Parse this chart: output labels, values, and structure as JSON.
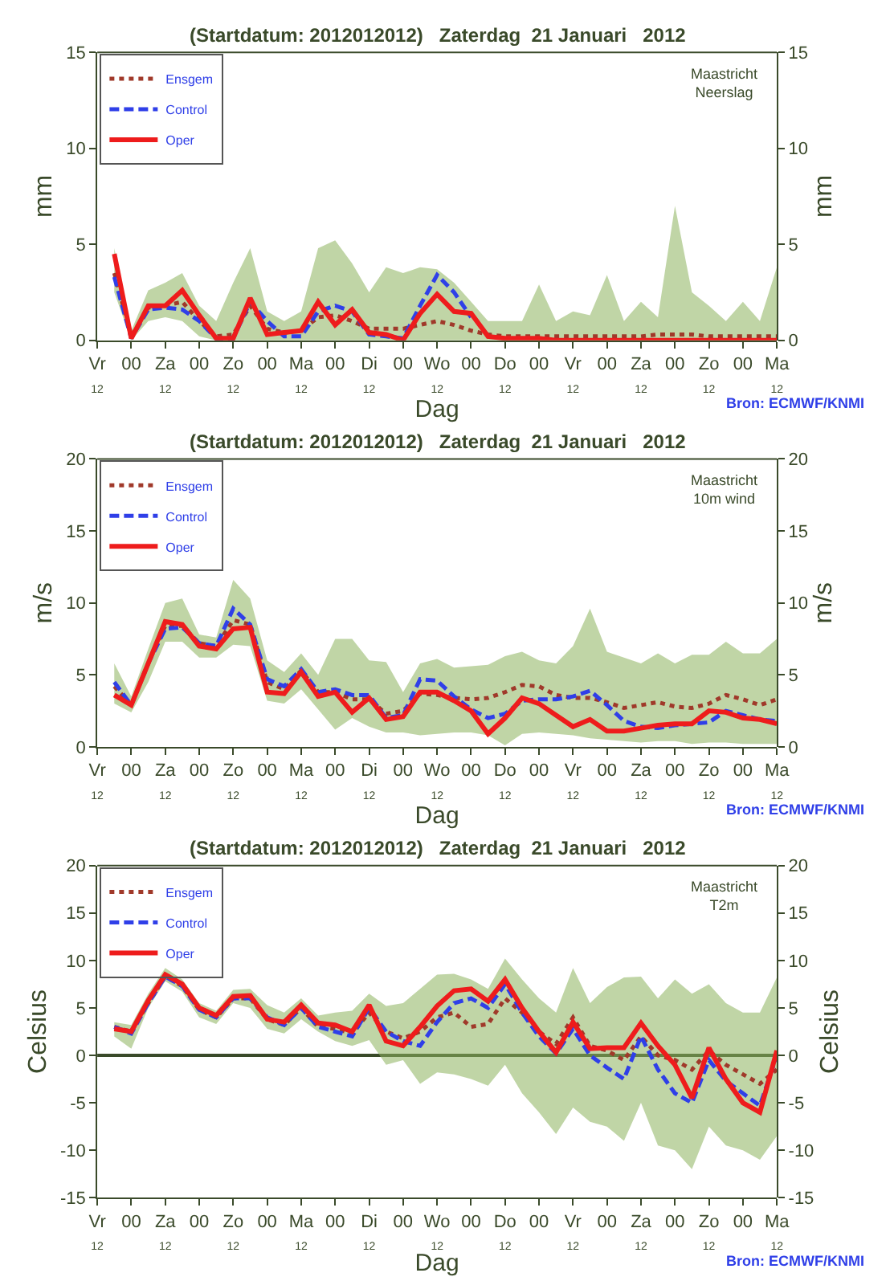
{
  "chart_data": [
    {
      "type": "line",
      "title": "(Startdatum: 2012012012)   Zaterdag  21 Januari   2012",
      "xlabel": "Dag",
      "ylabel": "mm",
      "y2label": "mm",
      "annotations": [
        "Maastricht\nNeerslag",
        "Bron: ECMWF/KNMI"
      ],
      "categories": [
        "Vr\n12",
        null,
        "00",
        null,
        "Za\n12",
        null,
        "00",
        null,
        "Zo\n12",
        null,
        "00",
        null,
        "Ma\n12",
        null,
        "00",
        null,
        "Di\n12",
        null,
        "00",
        null,
        "Wo\n12",
        null,
        "00",
        null,
        "Do\n12",
        null,
        "00",
        null,
        "Vr\n12",
        null,
        "00",
        null,
        "Za\n12",
        null,
        "00",
        null,
        "Zo\n12",
        null,
        "00",
        null,
        "Ma\n12"
      ],
      "ylim": [
        0,
        15
      ],
      "yticks": [
        0,
        5,
        10,
        15
      ],
      "y2lim": [
        0,
        15
      ],
      "y2ticks": [
        0,
        5,
        10,
        15
      ],
      "grid": false,
      "legend": "top left",
      "marker": "none",
      "series": [
        {
          "name": "Ensgem",
          "color": "#a0392a",
          "line_style": "dotted",
          "values": [
            null,
            3.5,
            0.2,
            1.7,
            1.8,
            2.0,
            1.0,
            0.2,
            0.3,
            1.8,
            0.6,
            0.4,
            0.5,
            1.2,
            1.3,
            1.0,
            0.6,
            0.6,
            0.6,
            0.8,
            1.0,
            0.8,
            0.5,
            0.3,
            0.2,
            0.2,
            0.2,
            0.2,
            0.2,
            0.2,
            0.2,
            0.2,
            0.2,
            0.3,
            0.3,
            0.3,
            0.2,
            0.2,
            0.2,
            0.2,
            0.2
          ],
          "lower": [
            null,
            2.5,
            0,
            1.0,
            1.2,
            1.0,
            0.2,
            0,
            0,
            0,
            0,
            0,
            0,
            0,
            0,
            0,
            0,
            0,
            0,
            0,
            0,
            0,
            0,
            0,
            0,
            0,
            0,
            0,
            0,
            0,
            0,
            0,
            0,
            0,
            0,
            0,
            0,
            0,
            0,
            0,
            0
          ],
          "upper": [
            null,
            4.8,
            0.5,
            2.6,
            3.0,
            3.5,
            1.8,
            1.0,
            3.0,
            4.8,
            1.5,
            1.0,
            1.5,
            4.8,
            5.2,
            4.0,
            2.5,
            3.8,
            3.5,
            3.8,
            3.7,
            3.0,
            2.0,
            1.0,
            1.0,
            1.0,
            2.9,
            1.0,
            1.5,
            1.3,
            3.4,
            1.0,
            2.0,
            1.2,
            7.0,
            2.5,
            1.8,
            1.0,
            2.0,
            1.0,
            3.8
          ]
        },
        {
          "name": "Control",
          "color": "#2f3fe8",
          "line_style": "dashed",
          "values": [
            null,
            3.3,
            0.1,
            1.6,
            1.7,
            1.6,
            1.0,
            0.1,
            0.1,
            2.0,
            1.0,
            0.2,
            0.2,
            1.5,
            1.8,
            1.5,
            0.3,
            0.2,
            0.1,
            1.8,
            3.4,
            2.5,
            1.2,
            null,
            null,
            null,
            null,
            null,
            null,
            null,
            null,
            null,
            null,
            null,
            null,
            null,
            null,
            null,
            null,
            null,
            null
          ]
        },
        {
          "name": "Oper",
          "color": "#ee1c1c",
          "line_style": "solid",
          "values": [
            null,
            4.5,
            0.1,
            1.8,
            1.8,
            2.6,
            1.3,
            0.1,
            0.1,
            2.2,
            0.3,
            0.4,
            0.5,
            2.0,
            0.8,
            1.6,
            0.4,
            0.3,
            0.0,
            1.4,
            2.4,
            1.5,
            1.4,
            0.2,
            0.1,
            0.1,
            0.1,
            0,
            0,
            0,
            0,
            0,
            0,
            0,
            0,
            0,
            0,
            0,
            0,
            0,
            0
          ]
        }
      ]
    },
    {
      "type": "line",
      "title": "(Startdatum: 2012012012)   Zaterdag  21 Januari   2012",
      "xlabel": "Dag",
      "ylabel": "m/s",
      "y2label": "m/s",
      "annotations": [
        "Maastricht\n10m wind",
        "Bron: ECMWF/KNMI"
      ],
      "categories": [
        "Vr\n12",
        null,
        "00",
        null,
        "Za\n12",
        null,
        "00",
        null,
        "Zo\n12",
        null,
        "00",
        null,
        "Ma\n12",
        null,
        "00",
        null,
        "Di\n12",
        null,
        "00",
        null,
        "Wo\n12",
        null,
        "00",
        null,
        "Do\n12",
        null,
        "00",
        null,
        "Vr\n12",
        null,
        "00",
        null,
        "Za\n12",
        null,
        "00",
        null,
        "Zo\n12",
        null,
        "00",
        null,
        "Ma\n12"
      ],
      "ylim": [
        0,
        20
      ],
      "yticks": [
        0,
        5,
        10,
        15,
        20
      ],
      "y2lim": [
        0,
        20
      ],
      "y2ticks": [
        0,
        5,
        10,
        15,
        20
      ],
      "grid": false,
      "legend": "top left",
      "marker": "none",
      "series": [
        {
          "name": "Ensgem",
          "color": "#a0392a",
          "line_style": "dotted",
          "values": [
            null,
            4.2,
            2.9,
            5.8,
            8.4,
            8.4,
            7.2,
            7.0,
            8.8,
            8.5,
            4.5,
            4.0,
            5.3,
            3.8,
            3.8,
            3.3,
            3.3,
            2.3,
            2.5,
            3.7,
            3.6,
            3.4,
            3.3,
            3.4,
            3.8,
            4.3,
            4.2,
            3.6,
            3.4,
            3.4,
            3.1,
            2.7,
            2.9,
            3.1,
            2.8,
            2.7,
            3.0,
            3.6,
            3.3,
            2.9,
            3.3
          ],
          "lower": [
            null,
            3.0,
            2.4,
            4.5,
            7.3,
            7.3,
            6.2,
            6.2,
            7.1,
            7.0,
            3.2,
            3.0,
            4.0,
            2.6,
            1.2,
            2.0,
            1.4,
            1.0,
            1.0,
            0.8,
            0.9,
            1.0,
            1.0,
            0.8,
            0.1,
            0.9,
            1.0,
            0.9,
            0.8,
            0.6,
            0.5,
            0.4,
            0.3,
            0.4,
            0.4,
            0.2,
            0.3,
            0.3,
            0.2,
            0.2,
            0.2
          ],
          "upper": [
            null,
            5.8,
            3.5,
            6.8,
            10.0,
            10.3,
            7.8,
            7.6,
            11.6,
            10.3,
            6.0,
            5.2,
            6.5,
            5.0,
            7.5,
            7.5,
            6.0,
            5.9,
            3.8,
            5.8,
            6.1,
            5.5,
            5.6,
            5.7,
            6.3,
            6.6,
            6.0,
            5.8,
            7.0,
            9.6,
            6.6,
            6.2,
            5.8,
            6.5,
            5.8,
            6.4,
            6.4,
            7.3,
            6.5,
            6.5,
            7.5
          ]
        },
        {
          "name": "Control",
          "color": "#2f3fe8",
          "line_style": "dashed",
          "values": [
            null,
            4.5,
            2.9,
            5.8,
            8.2,
            8.3,
            7.2,
            7.0,
            9.6,
            8.5,
            4.7,
            4.2,
            5.4,
            3.8,
            4.0,
            3.6,
            3.6,
            2.0,
            2.2,
            4.7,
            4.6,
            3.5,
            2.6,
            2.0,
            2.3,
            3.2,
            3.3,
            3.3,
            3.5,
            3.9,
            2.9,
            1.8,
            1.4,
            1.3,
            1.5,
            1.6,
            1.7,
            2.5,
            2.2,
            1.9,
            1.8
          ]
        },
        {
          "name": "Oper",
          "color": "#ee1c1c",
          "line_style": "solid",
          "values": [
            null,
            3.6,
            2.9,
            5.8,
            8.7,
            8.5,
            7.0,
            6.8,
            8.2,
            8.3,
            3.8,
            3.7,
            5.2,
            3.5,
            3.8,
            2.4,
            3.4,
            1.9,
            2.1,
            3.8,
            3.8,
            3.2,
            2.5,
            0.9,
            2.0,
            3.4,
            3.0,
            2.2,
            1.4,
            1.9,
            1.1,
            1.1,
            1.3,
            1.5,
            1.6,
            1.6,
            2.5,
            2.4,
            2.0,
            1.9,
            1.6
          ]
        }
      ]
    },
    {
      "type": "line",
      "title": "(Startdatum: 2012012012)   Zaterdag  21 Januari   2012",
      "xlabel": "Dag",
      "ylabel": "Celsius",
      "y2label": "Celsius",
      "annotations": [
        "Maastricht\nT2m",
        "Bron: ECMWF/KNMI"
      ],
      "categories": [
        "Vr\n12",
        null,
        "00",
        null,
        "Za\n12",
        null,
        "00",
        null,
        "Zo\n12",
        null,
        "00",
        null,
        "Ma\n12",
        null,
        "00",
        null,
        "Di\n12",
        null,
        "00",
        null,
        "Wo\n12",
        null,
        "00",
        null,
        "Do\n12",
        null,
        "00",
        null,
        "Vr\n12",
        null,
        "00",
        null,
        "Za\n12",
        null,
        "00",
        null,
        "Zo\n12",
        null,
        "00",
        null,
        "Ma\n12"
      ],
      "ylim": [
        -15,
        20
      ],
      "yticks": [
        -15,
        -10,
        -5,
        0,
        5,
        10,
        15,
        20
      ],
      "y2lim": [
        -15,
        20
      ],
      "y2ticks": [
        -15,
        -10,
        -5,
        0,
        5,
        10,
        15,
        20
      ],
      "grid": false,
      "legend": "top left",
      "marker": "none",
      "ref_lines": [
        {
          "axis": "y",
          "value": 0,
          "color": "#3a4a2a",
          "line_style": "solid"
        }
      ],
      "series": [
        {
          "name": "Ensgem",
          "color": "#a0392a",
          "line_style": "dotted",
          "values": [
            null,
            3.0,
            2.5,
            5.5,
            8.3,
            7.3,
            4.8,
            4.0,
            6.0,
            6.0,
            3.8,
            3.2,
            5.0,
            3.0,
            2.8,
            2.3,
            4.5,
            2.5,
            1.8,
            2.5,
            4.0,
            4.5,
            3.0,
            3.3,
            6.0,
            4.5,
            2.5,
            1.2,
            4.0,
            1.0,
            0.5,
            -0.5,
            2.0,
            0.0,
            -0.5,
            -1.5,
            0.5,
            -1.0,
            -2.0,
            -3.0,
            -1.5
          ],
          "lower": [
            null,
            2.0,
            0.7,
            5.0,
            7.8,
            6.7,
            4.0,
            3.3,
            5.5,
            5.0,
            2.8,
            2.3,
            3.8,
            2.5,
            1.5,
            1.0,
            1.6,
            -1.0,
            -0.5,
            -3.0,
            -1.8,
            -2.0,
            -2.5,
            -3.2,
            -1.0,
            -4.0,
            -6.0,
            -8.3,
            -5.5,
            -7.0,
            -7.5,
            -9.0,
            -5.0,
            -9.5,
            -10.0,
            -12.0,
            -7.5,
            -9.5,
            -10.0,
            -11.0,
            -8.5
          ],
          "upper": [
            null,
            3.5,
            3.2,
            6.5,
            9.2,
            8.0,
            5.5,
            4.7,
            6.9,
            7.0,
            5.3,
            4.5,
            6.0,
            4.2,
            4.5,
            4.7,
            6.5,
            5.2,
            5.5,
            7.0,
            8.5,
            8.6,
            8.0,
            7.0,
            10.2,
            8.0,
            6.0,
            4.5,
            9.2,
            5.5,
            7.2,
            8.2,
            8.3,
            6.0,
            8.0,
            6.5,
            7.5,
            5.5,
            4.5,
            4.5,
            8.2
          ]
        },
        {
          "name": "Control",
          "color": "#2f3fe8",
          "line_style": "dashed",
          "values": [
            null,
            3.0,
            2.3,
            5.5,
            8.3,
            7.3,
            4.8,
            4.0,
            6.0,
            6.0,
            4.0,
            3.2,
            5.0,
            3.0,
            2.5,
            2.0,
            5.0,
            2.5,
            1.5,
            1.0,
            3.5,
            5.5,
            6.0,
            5.0,
            7.5,
            4.5,
            2.0,
            0.2,
            2.8,
            0.0,
            -1.3,
            -2.5,
            2.0,
            -1.5,
            -4.0,
            -5.0,
            -0.5,
            -2.7,
            -4.0,
            -5.3,
            0.0
          ]
        },
        {
          "name": "Oper",
          "color": "#ee1c1c",
          "line_style": "solid",
          "values": [
            null,
            2.8,
            2.5,
            5.8,
            8.5,
            7.5,
            5.0,
            4.2,
            6.2,
            6.3,
            3.8,
            3.5,
            5.3,
            3.4,
            3.2,
            2.5,
            5.3,
            1.5,
            1.0,
            3.0,
            5.2,
            6.8,
            7.0,
            5.7,
            8.0,
            5.0,
            2.5,
            0.3,
            3.5,
            0.7,
            0.8,
            0.8,
            3.4,
            1.0,
            -1.0,
            -4.5,
            0.8,
            -2.5,
            -5.0,
            -6.0,
            0.5
          ]
        }
      ]
    }
  ]
}
